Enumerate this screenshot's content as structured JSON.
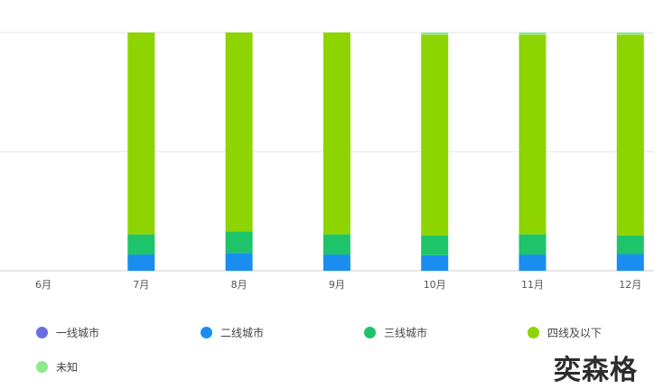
{
  "chart_data": {
    "type": "bar",
    "stacked": true,
    "categories": [
      "6月",
      "7月",
      "8月",
      "9月",
      "10月",
      "11月",
      "12月"
    ],
    "ylim": [
      0,
      100
    ],
    "series": [
      {
        "name": "一线城市",
        "color": "#6b6ee0",
        "values": [
          0,
          0,
          0,
          0,
          0,
          0,
          0
        ]
      },
      {
        "name": "二线城市",
        "color": "#1a8ef0",
        "values": [
          0,
          6.8,
          7.5,
          6.8,
          6.5,
          6.8,
          7.0
        ]
      },
      {
        "name": "三线城市",
        "color": "#1ec46a",
        "values": [
          0,
          8.5,
          9.0,
          8.5,
          8.3,
          8.5,
          7.8
        ]
      },
      {
        "name": "四线及以下",
        "color": "#8ed400",
        "values": [
          0,
          84.7,
          83.5,
          84.7,
          84.2,
          83.7,
          84.2
        ]
      },
      {
        "name": "未知",
        "color": "#8ee88e",
        "values": [
          0,
          0,
          0,
          0,
          1.0,
          1.0,
          1.0
        ]
      }
    ],
    "grid": true,
    "legend_position": "bottom"
  },
  "watermark": "奕森格"
}
